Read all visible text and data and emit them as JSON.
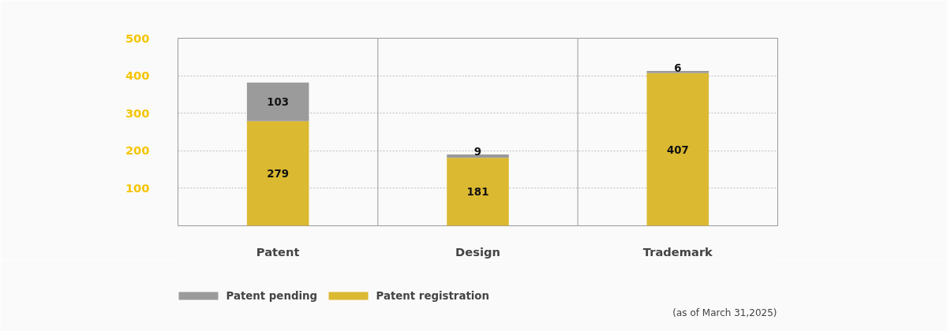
{
  "chart_data": {
    "type": "bar",
    "stacked": true,
    "categories": [
      "Patent",
      "Design",
      "Trademark"
    ],
    "series": [
      {
        "name": "Patent registration",
        "color": "#dbb930",
        "values": [
          279,
          181,
          407
        ]
      },
      {
        "name": "Patent pending",
        "color": "#9b9b9b",
        "values": [
          103,
          9,
          6
        ]
      }
    ],
    "ylim": [
      0,
      500
    ],
    "yticks": [
      100,
      200,
      300,
      400,
      500
    ],
    "grid": "y",
    "data_labels": true,
    "legend": "bottom left",
    "annotations": [
      "(as of March 31,2025)"
    ]
  }
}
